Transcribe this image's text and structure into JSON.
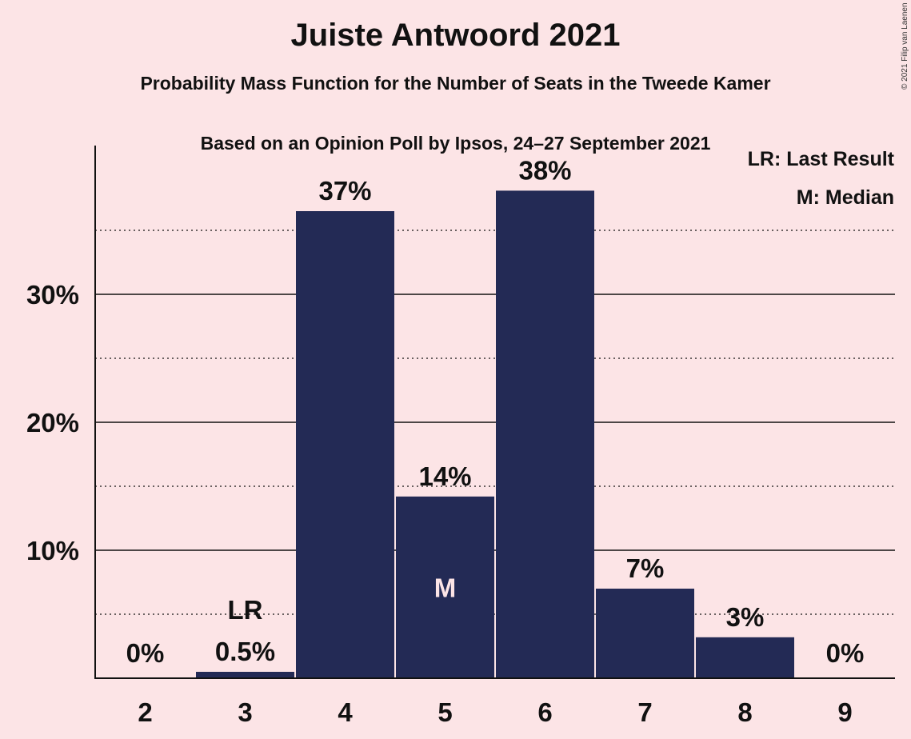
{
  "title": "Juiste Antwoord 2021",
  "subtitle1": "Probability Mass Function for the Number of Seats in the Tweede Kamer",
  "subtitle2": "Based on an Opinion Poll by Ipsos, 24–27 September 2021",
  "copyright": "© 2021 Filip van Laenen",
  "legend": {
    "last_result": "LR: Last Result",
    "median": "M: Median"
  },
  "colors": {
    "bar": "#232a55",
    "background": "#fce4e6",
    "median_label": "#fce4e6"
  },
  "chart_data": {
    "type": "bar",
    "categories": [
      "2",
      "3",
      "4",
      "5",
      "6",
      "7",
      "8",
      "9"
    ],
    "values": [
      0,
      0.5,
      36.5,
      14.2,
      38.1,
      7.0,
      3.2,
      0
    ],
    "data_labels": [
      "0%",
      "0.5%",
      "37%",
      "14%",
      "38%",
      "7%",
      "3%",
      "0%"
    ],
    "markers": {
      "3": "LR",
      "5": "M"
    },
    "ylim": [
      0,
      41.5
    ],
    "yticks": [
      10,
      20,
      30
    ],
    "ytick_labels": [
      "10%",
      "20%",
      "30%"
    ],
    "minor_gridlines": [
      5,
      15,
      25,
      35
    ],
    "grid": true,
    "legend_position": "top-right"
  }
}
